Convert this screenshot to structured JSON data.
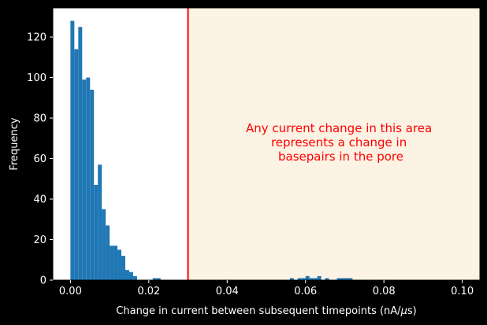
{
  "chart_data": {
    "type": "bar",
    "subtype": "histogram",
    "title": "",
    "xlabel": "Change in current between subsequent timepoints (nA/μs)",
    "xlabel_prefix": "Change in current between subsequent timepoints (nA/",
    "xlabel_mu": "μ",
    "xlabel_suffix": "s)",
    "ylabel": "Frequency",
    "xlim": [
      -0.0045,
      0.1045
    ],
    "ylim": [
      0,
      134.4
    ],
    "xticks": [
      0.0,
      0.02,
      0.04,
      0.06,
      0.08,
      0.1
    ],
    "xtick_labels": [
      "0.00",
      "0.02",
      "0.04",
      "0.06",
      "0.08",
      "0.10"
    ],
    "yticks": [
      0,
      20,
      40,
      60,
      80,
      100,
      120
    ],
    "ytick_labels": [
      "0",
      "20",
      "40",
      "60",
      "80",
      "100",
      "120"
    ],
    "grid": false,
    "bin_width": 0.001,
    "bins": [
      {
        "x0": 0.0,
        "count": 128
      },
      {
        "x0": 0.001,
        "count": 114
      },
      {
        "x0": 0.002,
        "count": 125
      },
      {
        "x0": 0.003,
        "count": 99
      },
      {
        "x0": 0.004,
        "count": 100
      },
      {
        "x0": 0.005,
        "count": 94
      },
      {
        "x0": 0.006,
        "count": 47
      },
      {
        "x0": 0.007,
        "count": 57
      },
      {
        "x0": 0.008,
        "count": 35
      },
      {
        "x0": 0.009,
        "count": 27
      },
      {
        "x0": 0.01,
        "count": 17
      },
      {
        "x0": 0.011,
        "count": 17
      },
      {
        "x0": 0.012,
        "count": 15
      },
      {
        "x0": 0.013,
        "count": 12
      },
      {
        "x0": 0.014,
        "count": 5
      },
      {
        "x0": 0.015,
        "count": 4
      },
      {
        "x0": 0.016,
        "count": 2
      },
      {
        "x0": 0.021,
        "count": 1
      },
      {
        "x0": 0.022,
        "count": 1
      },
      {
        "x0": 0.056,
        "count": 1
      },
      {
        "x0": 0.058,
        "count": 1
      },
      {
        "x0": 0.059,
        "count": 1
      },
      {
        "x0": 0.06,
        "count": 2
      },
      {
        "x0": 0.061,
        "count": 1
      },
      {
        "x0": 0.062,
        "count": 1
      },
      {
        "x0": 0.063,
        "count": 2
      },
      {
        "x0": 0.065,
        "count": 1
      },
      {
        "x0": 0.068,
        "count": 1
      },
      {
        "x0": 0.069,
        "count": 1
      },
      {
        "x0": 0.07,
        "count": 1
      },
      {
        "x0": 0.071,
        "count": 1
      }
    ],
    "threshold_x": 0.03,
    "shaded_region": [
      0.03,
      0.1045
    ],
    "annotation": {
      "lines": [
        "Any current change in this area",
        "represents a change in",
        "basepairs in the pore"
      ],
      "x": 0.069,
      "y": 68
    },
    "colors": {
      "background": "#000000",
      "plot_area": "#ffffff",
      "shaded_region": "#fdf3e4",
      "bars": "#1f77b4",
      "threshold_line": "#ff0000",
      "annotation_text": "#ff0000",
      "axis_text": "#ffffff",
      "axes_frame": "#000000"
    }
  }
}
